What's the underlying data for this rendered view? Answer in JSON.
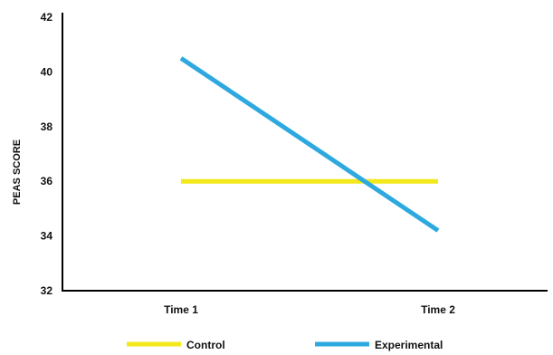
{
  "chart_data": {
    "type": "line",
    "title": "",
    "xlabel": "",
    "ylabel": "PEAS SCORE",
    "categories": [
      "Time 1",
      "Time 2"
    ],
    "ylim": [
      32,
      42
    ],
    "yticks": [
      "32",
      "34",
      "36",
      "38",
      "40",
      "42"
    ],
    "grid": false,
    "legend_position": "bottom",
    "series": [
      {
        "name": "Control",
        "values": [
          36.0,
          36.0
        ],
        "color": "#f2e81c"
      },
      {
        "name": "Experimental",
        "values": [
          40.5,
          34.2
        ],
        "color": "#2ea9df"
      }
    ]
  }
}
